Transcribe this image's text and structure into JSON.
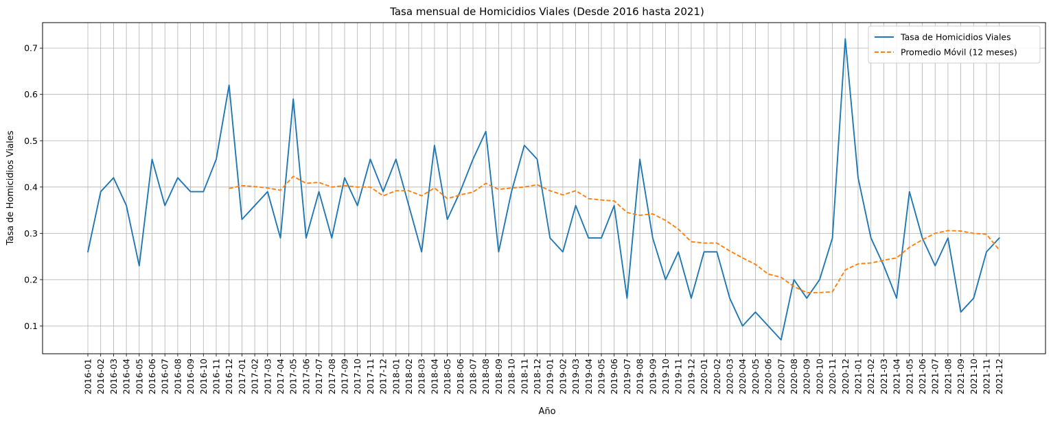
{
  "chart_data": {
    "type": "line",
    "title": "Tasa mensual de Homicidios Viales (Desde 2016 hasta 2021)",
    "xlabel": "Año",
    "ylabel": "Tasa de Homicidios Viales",
    "ylim": [
      0.04,
      0.755
    ],
    "yticks": [
      "0.1",
      "0.2",
      "0.3",
      "0.4",
      "0.5",
      "0.6",
      "0.7"
    ],
    "grid": true,
    "legend_position": "top-right",
    "categories": [
      "2016-01",
      "2016-02",
      "2016-03",
      "2016-04",
      "2016-05",
      "2016-06",
      "2016-07",
      "2016-08",
      "2016-09",
      "2016-10",
      "2016-11",
      "2016-12",
      "2017-01",
      "2017-02",
      "2017-03",
      "2017-04",
      "2017-05",
      "2017-06",
      "2017-07",
      "2017-08",
      "2017-09",
      "2017-10",
      "2017-11",
      "2017-12",
      "2018-01",
      "2018-02",
      "2018-03",
      "2018-04",
      "2018-05",
      "2018-06",
      "2018-07",
      "2018-08",
      "2018-09",
      "2018-10",
      "2018-11",
      "2018-12",
      "2019-01",
      "2019-02",
      "2019-03",
      "2019-04",
      "2019-05",
      "2019-06",
      "2019-07",
      "2019-08",
      "2019-09",
      "2019-10",
      "2019-11",
      "2019-12",
      "2020-01",
      "2020-02",
      "2020-03",
      "2020-04",
      "2020-05",
      "2020-06",
      "2020-07",
      "2020-08",
      "2020-09",
      "2020-10",
      "2020-11",
      "2020-12",
      "2021-01",
      "2021-02",
      "2021-03",
      "2021-04",
      "2021-05",
      "2021-06",
      "2021-07",
      "2021-08",
      "2021-09",
      "2021-10",
      "2021-11",
      "2021-12"
    ],
    "series": [
      {
        "name": "Tasa de Homicidios Viales",
        "color": "#1f77b4",
        "style": "solid",
        "values": [
          0.26,
          0.39,
          0.42,
          0.36,
          0.23,
          0.46,
          0.36,
          0.42,
          0.39,
          0.39,
          0.46,
          0.62,
          0.33,
          0.36,
          0.39,
          0.29,
          0.59,
          0.29,
          0.39,
          0.29,
          0.42,
          0.36,
          0.46,
          0.39,
          0.46,
          0.36,
          0.26,
          0.49,
          0.33,
          0.39,
          0.46,
          0.52,
          0.26,
          0.39,
          0.49,
          0.46,
          0.29,
          0.26,
          0.36,
          0.29,
          0.29,
          0.36,
          0.16,
          0.46,
          0.29,
          0.2,
          0.26,
          0.16,
          0.26,
          0.26,
          0.16,
          0.1,
          0.13,
          0.1,
          0.07,
          0.2,
          0.16,
          0.2,
          0.29,
          0.72,
          0.42,
          0.29,
          0.23,
          0.16,
          0.39,
          0.29,
          0.23,
          0.29,
          0.13,
          0.16,
          0.26,
          0.29
        ]
      },
      {
        "name": "Promedio Móvil (12 meses)",
        "color": "#ff7f0e",
        "style": "dashed",
        "values": [
          null,
          null,
          null,
          null,
          null,
          null,
          null,
          null,
          null,
          null,
          null,
          0.397,
          0.403,
          0.401,
          0.398,
          0.393,
          0.423,
          0.408,
          0.41,
          0.4,
          0.403,
          0.4,
          0.4,
          0.381,
          0.392,
          0.392,
          0.381,
          0.398,
          0.375,
          0.383,
          0.389,
          0.408,
          0.395,
          0.398,
          0.4,
          0.405,
          0.392,
          0.383,
          0.392,
          0.375,
          0.372,
          0.37,
          0.345,
          0.339,
          0.342,
          0.328,
          0.309,
          0.282,
          0.279,
          0.279,
          0.262,
          0.247,
          0.233,
          0.212,
          0.205,
          0.185,
          0.172,
          0.172,
          0.174,
          0.221,
          0.234,
          0.236,
          0.242,
          0.247,
          0.27,
          0.286,
          0.3,
          0.306,
          0.305,
          0.3,
          0.298,
          0.264
        ]
      }
    ]
  }
}
